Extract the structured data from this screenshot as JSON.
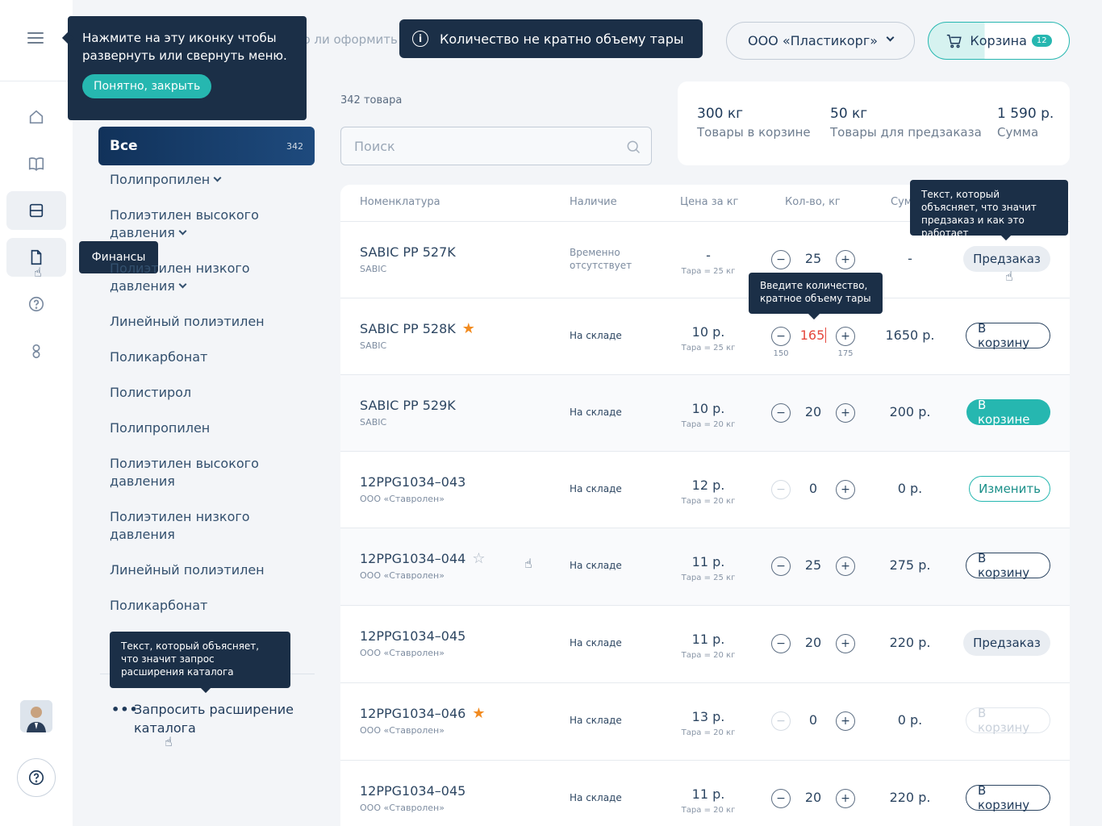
{
  "header": {
    "ghost_text": "Можно ли оформить предзаказ?",
    "notice": "Количество не кратно объему тары",
    "company": "ООО «Пластикорг»",
    "cart_label": "Корзина",
    "cart_count": "12"
  },
  "rail": {
    "tooltip_finance": "Финансы"
  },
  "menu_tip": {
    "text": "Нажмите на эту иконку чтобы развернуть или свернуть меню.",
    "button": "Понятно, закрыть"
  },
  "catalog": {
    "all_label": "Все",
    "all_count": "342",
    "items": [
      {
        "label": "Полипропилен"
      },
      {
        "label": "Полиэтилен высокого давления"
      },
      {
        "label": "Полиэтилен низкого давления"
      },
      {
        "label": "Линейный полиэтилен"
      },
      {
        "label": "Поликарбонат"
      },
      {
        "label": "Полистирол"
      },
      {
        "label": "Полипропилен"
      },
      {
        "label": "Полиэтилен высокого давления"
      },
      {
        "label": "Полиэтилен низкого давления"
      },
      {
        "label": "Линейный полиэтилен"
      },
      {
        "label": "Поликарбонат"
      }
    ],
    "expand_tip": "Текст, который объясняет, что значит запрос расширения каталога",
    "expand_label": "Запросить расширение каталога"
  },
  "main": {
    "count": "342 товара",
    "search_placeholder": "Поиск"
  },
  "summary": {
    "cart_weight": "300 кг",
    "cart_label": "Товары в корзине",
    "preorder_weight": "50 кг",
    "preorder_label": "Товары для предзаказа",
    "total": "1 590 р.",
    "total_label": "Сумма"
  },
  "table": {
    "headers": {
      "name": "Номенклатура",
      "avail": "Наличие",
      "price": "Цена за кг",
      "qty": "Кол-во, кг",
      "sum": "Сумма"
    },
    "preorder_tip": "Текст, который объясняет, что значит предзаказ и как это работает",
    "qty_tip": "Введите количество, кратное объему тары",
    "rows": [
      {
        "name": "SABIC PP 527K",
        "sub": "SABIC",
        "avail": "Временно отсутствует",
        "price": "-",
        "tare": "Тара = 25 кг",
        "qty": "25",
        "sum": "-",
        "action": "Предзаказ"
      },
      {
        "name": "SABIC PP 528K",
        "sub": "SABIC",
        "avail": "На складе",
        "price": "10 р.",
        "tare": "Тара = 25 кг",
        "qty": "165",
        "qty_low": "150",
        "qty_high": "175",
        "sum": "1650 р.",
        "action": "В корзину"
      },
      {
        "name": "SABIC PP 529K",
        "sub": "SABIC",
        "avail": "На складе",
        "price": "10 р.",
        "tare": "Тара = 20 кг",
        "qty": "20",
        "sum": "200 р.",
        "action": "В корзине"
      },
      {
        "name": "12PPG1034–043",
        "sub": "ООО «Ставролен»",
        "avail": "На складе",
        "price": "12 р.",
        "tare": "Тара = 20 кг",
        "qty": "0",
        "sum": "0 р.",
        "action": "Изменить"
      },
      {
        "name": "12PPG1034–044",
        "sub": "ООО «Ставролен»",
        "avail": "На складе",
        "price": "11 р.",
        "tare": "Тара = 25 кг",
        "qty": "25",
        "sum": "275 р.",
        "action": "В корзину"
      },
      {
        "name": "12PPG1034–045",
        "sub": "ООО «Ставролен»",
        "avail": "На складе",
        "price": "11 р.",
        "tare": "Тара = 20 кг",
        "qty": "20",
        "sum": "220 р.",
        "action": "Предзаказ"
      },
      {
        "name": "12PPG1034–046",
        "sub": "ООО «Ставролен»",
        "avail": "На складе",
        "price": "13 р.",
        "tare": "Тара = 20 кг",
        "qty": "0",
        "sum": "0 р.",
        "action": "В корзину"
      },
      {
        "name": "12PPG1034–045",
        "sub": "ООО «Ставролен»",
        "avail": "На складе",
        "price": "11 р.",
        "tare": "Тара = 20 кг",
        "qty": "20",
        "sum": "220 р.",
        "action": "В корзину"
      }
    ]
  },
  "colors": {
    "navy": "#1b2f47",
    "accent": "#26b7b0",
    "star": "#f28b20",
    "error": "#e5483d"
  }
}
